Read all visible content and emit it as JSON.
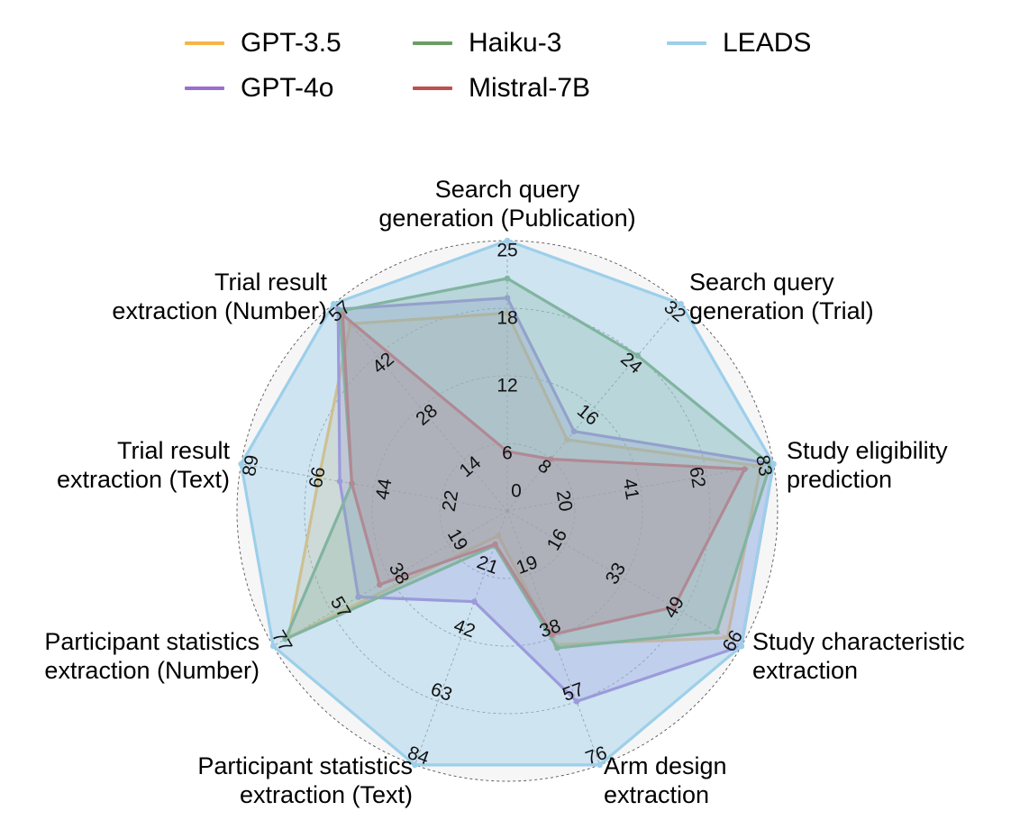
{
  "chart_data": {
    "type": "radar",
    "axes": [
      {
        "label": [
          "Search query",
          "generation (Publication)"
        ],
        "max": 25,
        "ticks": [
          "0",
          "6",
          "12",
          "18",
          "25"
        ]
      },
      {
        "label": [
          "Search query",
          "generation (Trial)"
        ],
        "max": 32,
        "ticks": [
          "8",
          "16",
          "24",
          "32"
        ]
      },
      {
        "label": [
          "Study eligibility",
          "prediction"
        ],
        "max": 83,
        "ticks": [
          "20",
          "41",
          "62",
          "83"
        ]
      },
      {
        "label": [
          "Study characteristic",
          "extraction"
        ],
        "max": 66,
        "ticks": [
          "16",
          "33",
          "49",
          "66"
        ]
      },
      {
        "label": [
          "Arm design",
          "extraction"
        ],
        "max": 76,
        "ticks": [
          "19",
          "38",
          "57",
          "76"
        ]
      },
      {
        "label": [
          "Participant statistics",
          "extraction (Text)"
        ],
        "max": 84,
        "ticks": [
          "21",
          "42",
          "63",
          "84"
        ]
      },
      {
        "label": [
          "Participant statistics",
          "extraction (Number)"
        ],
        "max": 77,
        "ticks": [
          "19",
          "38",
          "57",
          "77"
        ]
      },
      {
        "label": [
          "Trial result",
          "extraction (Text)"
        ],
        "max": 89,
        "ticks": [
          "22",
          "44",
          "66",
          "89"
        ]
      },
      {
        "label": [
          "Trial result",
          "extraction (Number)"
        ],
        "max": 57,
        "ticks": [
          "14",
          "28",
          "42",
          "57"
        ]
      }
    ],
    "series": [
      {
        "name": "GPT-3.5",
        "color": "#F5B54A",
        "values": [
          18.3,
          11.0,
          79.0,
          62.0,
          40.0,
          8.2,
          72.0,
          63.0,
          51.5
        ]
      },
      {
        "name": "GPT-4o",
        "color": "#9A6FCF",
        "values": [
          19.7,
          12.3,
          83.0,
          66.0,
          57.0,
          30.0,
          49.0,
          56.0,
          55.5
        ]
      },
      {
        "name": "Haiku-3",
        "color": "#6A9E63",
        "values": [
          21.5,
          24.0,
          82.0,
          59.0,
          41.0,
          11.5,
          73.0,
          52.0,
          55.0
        ]
      },
      {
        "name": "Mistral-7B",
        "color": "#C0504D",
        "values": [
          5.5,
          8.0,
          74.0,
          47.0,
          37.0,
          11.0,
          42.0,
          52.0,
          54.0
        ]
      },
      {
        "name": "LEADS",
        "color": "#9DCFEA",
        "values": [
          25.0,
          32.0,
          83.0,
          66.0,
          76.0,
          84.0,
          77.0,
          89.0,
          57.0
        ]
      }
    ],
    "legend": "top"
  }
}
